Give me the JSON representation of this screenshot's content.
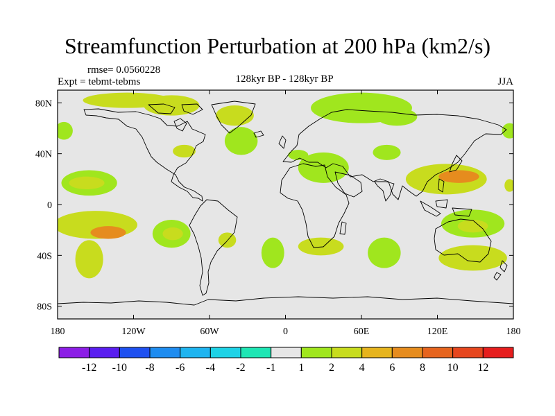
{
  "title": "Streamfunction Perturbation at 200 hPa (km2/s)",
  "rmse_label": "rmse= 0.0560228",
  "experiment_label": "Expt = tebmt-tebms",
  "comparison_label": "128kyr BP - 128kyr BP",
  "season_label": "JJA",
  "map": {
    "projection": "cylindrical-equidistant",
    "lon_range": [
      -180,
      180
    ],
    "lat_range": [
      -90,
      90
    ],
    "x_ticks": [
      {
        "value": -180,
        "label": "180"
      },
      {
        "value": -120,
        "label": "120W"
      },
      {
        "value": -60,
        "label": "60W"
      },
      {
        "value": 0,
        "label": "0"
      },
      {
        "value": 60,
        "label": "60E"
      },
      {
        "value": 120,
        "label": "120E"
      },
      {
        "value": 180,
        "label": "180"
      }
    ],
    "y_ticks": [
      {
        "value": 80,
        "label": "80N"
      },
      {
        "value": 40,
        "label": "40N"
      },
      {
        "value": 0,
        "label": "0"
      },
      {
        "value": -40,
        "label": "40S"
      },
      {
        "value": -80,
        "label": "80S"
      }
    ],
    "background_color": "#e6e6e6",
    "coast_color": "#000000",
    "anomalies": [
      {
        "lon": -125,
        "lat": 82,
        "rlon": 35,
        "rlat": 6,
        "level": 2
      },
      {
        "lon": -90,
        "lat": 78,
        "rlon": 22,
        "rlat": 8,
        "level": 2
      },
      {
        "lon": -40,
        "lat": 70,
        "rlon": 15,
        "rlat": 8,
        "level": 2
      },
      {
        "lon": 60,
        "lat": 76,
        "rlon": 40,
        "rlat": 12,
        "level": 1
      },
      {
        "lon": 88,
        "lat": 69,
        "rlon": 16,
        "rlat": 7,
        "level": 1
      },
      {
        "lon": -175,
        "lat": 58,
        "rlon": 7,
        "rlat": 7,
        "level": 1
      },
      {
        "lon": 177,
        "lat": 58,
        "rlon": 6,
        "rlat": 6,
        "level": 1
      },
      {
        "lon": -80,
        "lat": 42,
        "rlon": 9,
        "rlat": 5,
        "level": 2
      },
      {
        "lon": -35,
        "lat": 50,
        "rlon": 13,
        "rlat": 11,
        "level": 1
      },
      {
        "lon": 10,
        "lat": 39,
        "rlon": 8,
        "rlat": 4,
        "level": 1
      },
      {
        "lon": 30,
        "lat": 29,
        "rlon": 20,
        "rlat": 12,
        "level": 1
      },
      {
        "lon": 80,
        "lat": 41,
        "rlon": 11,
        "rlat": 6,
        "level": 1
      },
      {
        "lon": 127,
        "lat": 20,
        "rlon": 32,
        "rlat": 12,
        "level": 2
      },
      {
        "lon": 137,
        "lat": 22,
        "rlon": 16,
        "rlat": 5,
        "level": 4
      },
      {
        "lon": 177,
        "lat": 15,
        "rlon": 4,
        "rlat": 5,
        "level": 2
      },
      {
        "lon": -155,
        "lat": 17,
        "rlon": 22,
        "rlat": 10,
        "level": 1
      },
      {
        "lon": -157,
        "lat": 17,
        "rlon": 14,
        "rlat": 5,
        "level": 2
      },
      {
        "lon": -150,
        "lat": -16,
        "rlon": 33,
        "rlat": 11,
        "level": 2
      },
      {
        "lon": -140,
        "lat": -22,
        "rlon": 14,
        "rlat": 5,
        "level": 4
      },
      {
        "lon": -155,
        "lat": -43,
        "rlon": 11,
        "rlat": 15,
        "level": 2
      },
      {
        "lon": -90,
        "lat": -23,
        "rlon": 15,
        "rlat": 11,
        "level": 1
      },
      {
        "lon": -89,
        "lat": -23,
        "rlon": 8,
        "rlat": 5,
        "level": 2
      },
      {
        "lon": -46,
        "lat": -28,
        "rlon": 7,
        "rlat": 6,
        "level": 2
      },
      {
        "lon": -10,
        "lat": -38,
        "rlon": 9,
        "rlat": 12,
        "level": 1
      },
      {
        "lon": 28,
        "lat": -33,
        "rlon": 18,
        "rlat": 7,
        "level": 2
      },
      {
        "lon": 78,
        "lat": -38,
        "rlon": 13,
        "rlat": 12,
        "level": 1
      },
      {
        "lon": 148,
        "lat": -15,
        "rlon": 25,
        "rlat": 11,
        "level": 1
      },
      {
        "lon": 148,
        "lat": -17,
        "rlon": 12,
        "rlat": 5,
        "level": 2
      },
      {
        "lon": 148,
        "lat": -42,
        "rlon": 27,
        "rlat": 10,
        "level": 2
      }
    ]
  },
  "colorbar": {
    "colors": [
      "#8c1ee6",
      "#5a1ef0",
      "#1e50f0",
      "#1e8cf0",
      "#1eb4f0",
      "#1ed2e6",
      "#1ee6b4",
      "#e6e6e6",
      "#a0e61e",
      "#c8dc1e",
      "#e6b41e",
      "#e68c1e",
      "#e6641e",
      "#e6461e",
      "#e61e1e"
    ],
    "labels": [
      "-12",
      "-10",
      "-8",
      "-6",
      "-4",
      "-2",
      "-1",
      "1",
      "2",
      "4",
      "6",
      "8",
      "10",
      "12"
    ]
  }
}
